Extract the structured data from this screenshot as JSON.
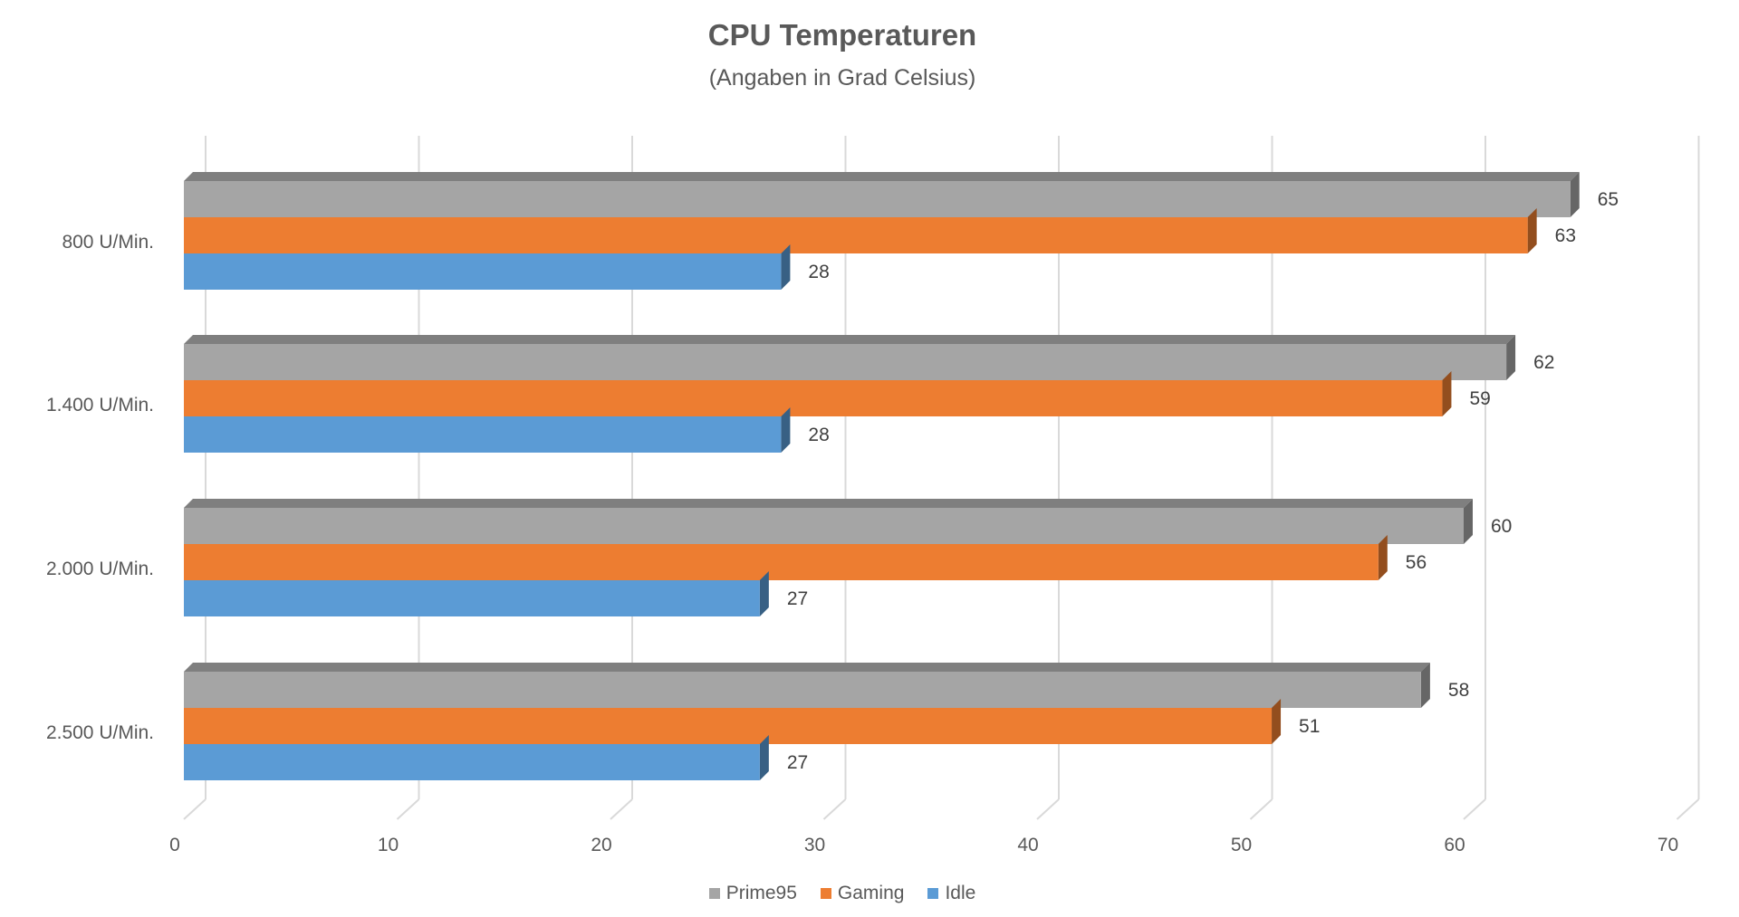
{
  "chart_data": {
    "type": "bar",
    "orientation": "horizontal",
    "title": "CPU Temperaturen",
    "subtitle": "(Angaben in Grad Celsius)",
    "categories": [
      "800 U/Min.",
      "1.400 U/Min.",
      "2.000 U/Min.",
      "2.500 U/Min."
    ],
    "series": [
      {
        "name": "Prime95",
        "values": [
          65,
          62,
          60,
          58
        ],
        "color": "#A5A5A5"
      },
      {
        "name": "Gaming",
        "values": [
          63,
          59,
          56,
          51
        ],
        "color": "#ED7D31"
      },
      {
        "name": "Idle",
        "values": [
          28,
          28,
          27,
          27
        ],
        "color": "#5B9BD5"
      }
    ],
    "xlim": [
      0,
      70
    ],
    "xticks": [
      0,
      10,
      20,
      30,
      40,
      50,
      60,
      70
    ],
    "grid": true,
    "legend_position": "bottom",
    "style": "3d"
  }
}
